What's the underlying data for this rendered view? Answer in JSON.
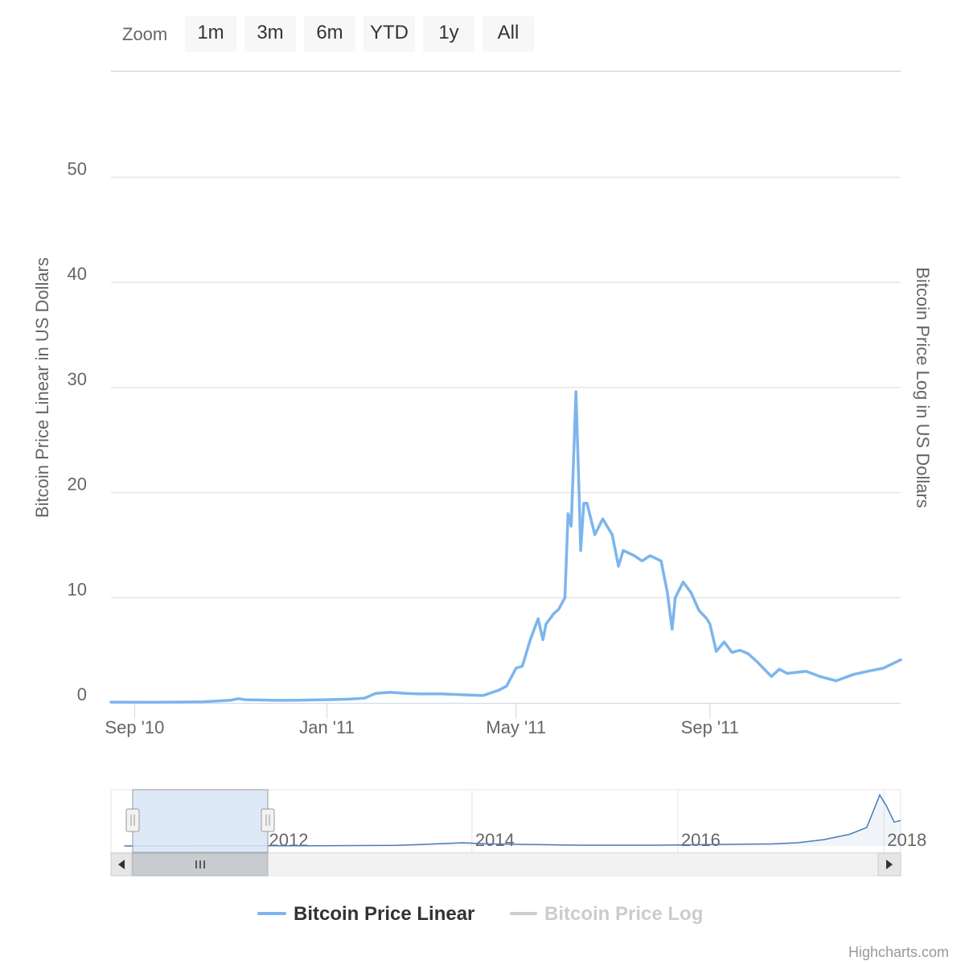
{
  "range_selector": {
    "label": "Zoom",
    "buttons": [
      "1m",
      "3m",
      "6m",
      "YTD",
      "1y",
      "All"
    ]
  },
  "credits": "Highcharts.com",
  "colors": {
    "series_linear": "#7cb5ec",
    "series_log_hidden": "#cccccc",
    "grid": "#e6e6e6",
    "navigator_mask": "#d8e5f7",
    "navigator_series": "#4a7ab5",
    "scrollbar_track": "#f2f2f2",
    "scrollbar_thumb": "#c8ccd1"
  },
  "chart_data": {
    "type": "line",
    "y_axis_left": {
      "title": "Bitcoin Price Linear in US Dollars",
      "ticks": [
        "0",
        "10",
        "20",
        "30",
        "40",
        "50"
      ],
      "range": [
        0,
        60
      ]
    },
    "y_axis_right": {
      "title": "Bitcoin Price Log in US Dollars"
    },
    "x_axis": {
      "ticks": [
        "Sep '10",
        "Jan '11",
        "May '11",
        "Sep '11"
      ],
      "tick_dates": [
        "2010-09-01",
        "2011-01-01",
        "2011-05-01",
        "2011-09-01"
      ],
      "range": [
        "2010-08-17",
        "2011-12-31"
      ]
    },
    "legend": {
      "items": [
        {
          "name": "Bitcoin Price Linear",
          "visible": true
        },
        {
          "name": "Bitcoin Price Log",
          "visible": false
        }
      ],
      "position": "bottom-center"
    },
    "navigator": {
      "ticks": [
        "2012",
        "2014",
        "2016",
        "2018"
      ],
      "tick_dates": [
        "2012-01-01",
        "2014-01-01",
        "2016-01-01",
        "2018-01-01"
      ],
      "range": [
        "2010-07-01",
        "2018-03-01"
      ],
      "selected_range": [
        "2010-08-17",
        "2011-12-31"
      ]
    },
    "series": [
      {
        "name": "Bitcoin Price Linear",
        "x": [
          "2010-08-17",
          "2010-09-15",
          "2010-10-15",
          "2010-11-01",
          "2010-11-06",
          "2010-11-10",
          "2010-11-20",
          "2010-12-01",
          "2010-12-15",
          "2011-01-01",
          "2011-01-15",
          "2011-01-25",
          "2011-02-01",
          "2011-02-10",
          "2011-02-20",
          "2011-03-01",
          "2011-03-15",
          "2011-04-01",
          "2011-04-10",
          "2011-04-20",
          "2011-04-25",
          "2011-05-01",
          "2011-05-05",
          "2011-05-10",
          "2011-05-15",
          "2011-05-18",
          "2011-05-20",
          "2011-05-25",
          "2011-05-28",
          "2011-06-01",
          "2011-06-03",
          "2011-06-05",
          "2011-06-08",
          "2011-06-10",
          "2011-06-11",
          "2011-06-13",
          "2011-06-15",
          "2011-06-20",
          "2011-06-25",
          "2011-07-01",
          "2011-07-05",
          "2011-07-08",
          "2011-07-15",
          "2011-07-20",
          "2011-07-25",
          "2011-08-01",
          "2011-08-05",
          "2011-08-08",
          "2011-08-10",
          "2011-08-15",
          "2011-08-20",
          "2011-08-25",
          "2011-08-30",
          "2011-09-01",
          "2011-09-05",
          "2011-09-10",
          "2011-09-15",
          "2011-09-20",
          "2011-09-25",
          "2011-10-01",
          "2011-10-10",
          "2011-10-15",
          "2011-10-20",
          "2011-11-01",
          "2011-11-10",
          "2011-11-20",
          "2011-12-01",
          "2011-12-10",
          "2011-12-20",
          "2011-12-31"
        ],
        "y": [
          0.07,
          0.06,
          0.1,
          0.25,
          0.4,
          0.3,
          0.27,
          0.24,
          0.25,
          0.3,
          0.35,
          0.45,
          0.9,
          1.0,
          0.9,
          0.85,
          0.85,
          0.75,
          0.7,
          1.2,
          1.6,
          3.3,
          3.5,
          6.0,
          8.0,
          6.0,
          7.5,
          8.5,
          8.9,
          10.0,
          18.0,
          16.8,
          29.6,
          20.0,
          14.5,
          19.0,
          19.0,
          16.0,
          17.5,
          16.0,
          13.0,
          14.5,
          14.0,
          13.5,
          14.0,
          13.5,
          10.5,
          7.0,
          10.0,
          11.5,
          10.5,
          8.8,
          8.0,
          7.5,
          4.9,
          5.8,
          4.8,
          5.0,
          4.7,
          3.9,
          2.5,
          3.2,
          2.8,
          3.0,
          2.5,
          2.1,
          2.7,
          3.0,
          3.3,
          4.1
        ]
      }
    ]
  }
}
